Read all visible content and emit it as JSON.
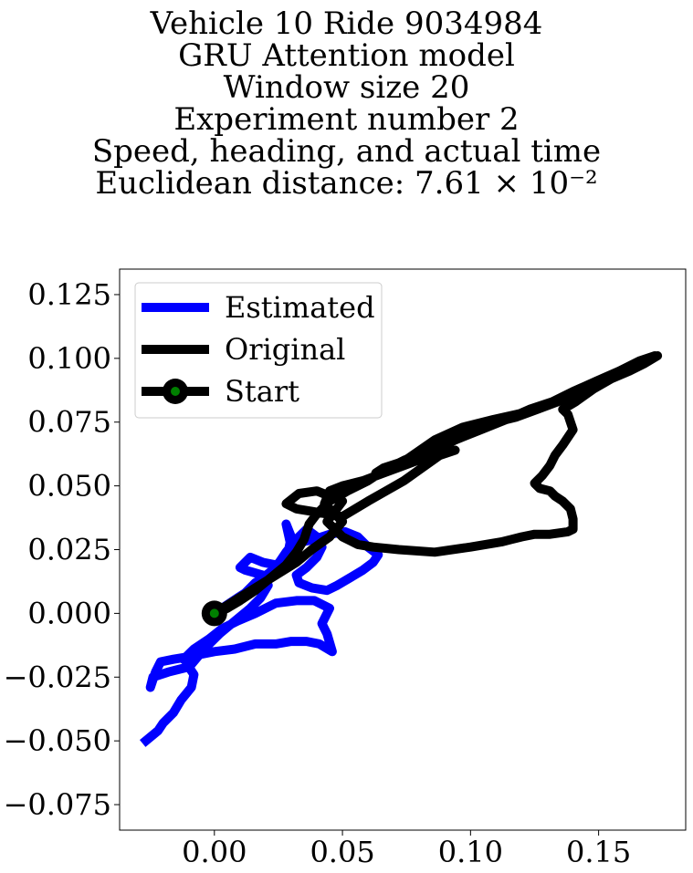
{
  "chart_data": {
    "type": "line",
    "title_lines": [
      "Vehicle 10 Ride 9034984",
      "GRU Attention model",
      "Window size 20",
      "Experiment number 2",
      "Speed, heading, and actual time",
      "Euclidean distance: 7.61 × 10⁻²"
    ],
    "xlabel": "",
    "ylabel": "",
    "xlim": [
      -0.037,
      0.184
    ],
    "ylim": [
      -0.085,
      0.135
    ],
    "xticks": [
      0.0,
      0.05,
      0.1,
      0.15
    ],
    "xtick_labels": [
      "0.00",
      "0.05",
      "0.10",
      "0.15"
    ],
    "yticks": [
      -0.075,
      -0.05,
      -0.025,
      0.0,
      0.025,
      0.05,
      0.075,
      0.1,
      0.125
    ],
    "ytick_labels": [
      "−0.075",
      "−0.050",
      "−0.025",
      "0.000",
      "0.025",
      "0.050",
      "0.075",
      "0.100",
      "0.125"
    ],
    "grid": false,
    "legend_position": "top-left",
    "legend": [
      "Estimated",
      "Original",
      "Start"
    ],
    "colors": {
      "estimated": "#0000ff",
      "original": "#000000",
      "start_fill": "#008000"
    },
    "series": [
      {
        "name": "Estimated",
        "x": [
          -0.028,
          -0.022,
          -0.02,
          -0.016,
          -0.013,
          -0.009,
          -0.008,
          -0.01,
          -0.014,
          -0.018,
          -0.024,
          -0.025,
          -0.023,
          -0.021,
          -0.016,
          -0.01,
          -0.005,
          0.0,
          0.008,
          0.016,
          0.024,
          0.03,
          0.036,
          0.041,
          0.046,
          0.044,
          0.042,
          0.045,
          0.039,
          0.032,
          0.024,
          0.016,
          0.009,
          0.003,
          -0.002,
          -0.008,
          -0.012,
          -0.009,
          -0.004,
          0.002,
          0.008,
          0.014,
          0.018,
          0.021,
          0.019,
          0.012,
          0.01,
          0.014,
          0.019,
          0.024,
          0.027,
          0.029,
          0.03,
          0.028,
          0.03,
          0.034,
          0.039,
          0.045,
          0.051,
          0.056,
          0.06,
          0.064,
          0.062,
          0.058,
          0.053,
          0.048,
          0.044,
          0.038,
          0.033,
          0.032,
          0.036,
          0.04,
          0.042,
          0.04,
          0.036,
          0.032,
          0.028,
          0.024,
          0.019,
          0.016,
          0.014,
          0.012,
          0.009,
          0.006,
          0.003,
          0.0
        ],
        "y": [
          -0.051,
          -0.046,
          -0.043,
          -0.039,
          -0.034,
          -0.029,
          -0.024,
          -0.021,
          -0.022,
          -0.023,
          -0.025,
          -0.029,
          -0.023,
          -0.019,
          -0.018,
          -0.017,
          -0.016,
          -0.015,
          -0.014,
          -0.012,
          -0.012,
          -0.011,
          -0.011,
          -0.012,
          -0.015,
          -0.008,
          -0.004,
          0.002,
          0.005,
          0.005,
          0.004,
          0.0,
          -0.003,
          -0.006,
          -0.01,
          -0.014,
          -0.018,
          -0.02,
          -0.014,
          -0.008,
          -0.003,
          0.002,
          0.006,
          0.011,
          0.015,
          0.017,
          0.018,
          0.022,
          0.02,
          0.019,
          0.021,
          0.025,
          0.03,
          0.035,
          0.026,
          0.028,
          0.029,
          0.031,
          0.032,
          0.03,
          0.026,
          0.023,
          0.02,
          0.017,
          0.014,
          0.011,
          0.009,
          0.01,
          0.012,
          0.015,
          0.018,
          0.022,
          0.026,
          0.03,
          0.033,
          0.029,
          0.024,
          0.018,
          0.014,
          0.012,
          0.01,
          0.008,
          0.006,
          0.004,
          0.002,
          0.0
        ]
      },
      {
        "name": "Original",
        "x": [
          0.0,
          0.008,
          0.016,
          0.024,
          0.032,
          0.038,
          0.045,
          0.05,
          0.043,
          0.045,
          0.05,
          0.058,
          0.066,
          0.074,
          0.082,
          0.09,
          0.1,
          0.11,
          0.118,
          0.126,
          0.134,
          0.141,
          0.148,
          0.155,
          0.162,
          0.168,
          0.173,
          0.17,
          0.163,
          0.155,
          0.148,
          0.141,
          0.136,
          0.138,
          0.14,
          0.136,
          0.133,
          0.131,
          0.128,
          0.125,
          0.127,
          0.131,
          0.133,
          0.136,
          0.139,
          0.14,
          0.14,
          0.138,
          0.131,
          0.125,
          0.12,
          0.116,
          0.112,
          0.1,
          0.086,
          0.072,
          0.062,
          0.056,
          0.05,
          0.046,
          0.044,
          0.047,
          0.05,
          0.045,
          0.04,
          0.033,
          0.028,
          0.032,
          0.038,
          0.044,
          0.05,
          0.055,
          0.06,
          0.067,
          0.074,
          0.081,
          0.088,
          0.094,
          0.088,
          0.08,
          0.072,
          0.066,
          0.063,
          0.068,
          0.076,
          0.086,
          0.097,
          0.109,
          0.118,
          0.126,
          0.133,
          0.141,
          0.149,
          0.157,
          0.165,
          0.172,
          0.166,
          0.158,
          0.149,
          0.14,
          0.132,
          0.123,
          0.114,
          0.104,
          0.094,
          0.084,
          0.074,
          0.066,
          0.06,
          0.052,
          0.045,
          0.04,
          0.037,
          0.035,
          0.032,
          0.028,
          0.022,
          0.016,
          0.01,
          0.005,
          0.0
        ],
        "y": [
          0.0,
          0.005,
          0.01,
          0.015,
          0.02,
          0.025,
          0.03,
          0.036,
          0.043,
          0.048,
          0.05,
          0.052,
          0.055,
          0.058,
          0.061,
          0.066,
          0.071,
          0.075,
          0.077,
          0.08,
          0.083,
          0.086,
          0.089,
          0.092,
          0.095,
          0.098,
          0.101,
          0.1,
          0.096,
          0.092,
          0.088,
          0.083,
          0.08,
          0.078,
          0.072,
          0.066,
          0.062,
          0.058,
          0.054,
          0.051,
          0.049,
          0.048,
          0.046,
          0.044,
          0.041,
          0.037,
          0.033,
          0.032,
          0.031,
          0.031,
          0.03,
          0.029,
          0.028,
          0.026,
          0.024,
          0.025,
          0.026,
          0.027,
          0.03,
          0.034,
          0.036,
          0.04,
          0.044,
          0.046,
          0.048,
          0.047,
          0.043,
          0.041,
          0.04,
          0.039,
          0.038,
          0.041,
          0.044,
          0.048,
          0.052,
          0.057,
          0.062,
          0.064,
          0.063,
          0.062,
          0.059,
          0.057,
          0.055,
          0.056,
          0.061,
          0.068,
          0.073,
          0.076,
          0.078,
          0.08,
          0.083,
          0.087,
          0.09,
          0.094,
          0.098,
          0.101,
          0.099,
          0.095,
          0.091,
          0.087,
          0.083,
          0.08,
          0.076,
          0.072,
          0.068,
          0.064,
          0.06,
          0.056,
          0.052,
          0.048,
          0.044,
          0.039,
          0.035,
          0.029,
          0.024,
          0.019,
          0.014,
          0.009,
          0.005,
          0.002,
          0.0
        ]
      },
      {
        "name": "Start",
        "x": [
          0.0
        ],
        "y": [
          0.0
        ]
      }
    ]
  }
}
